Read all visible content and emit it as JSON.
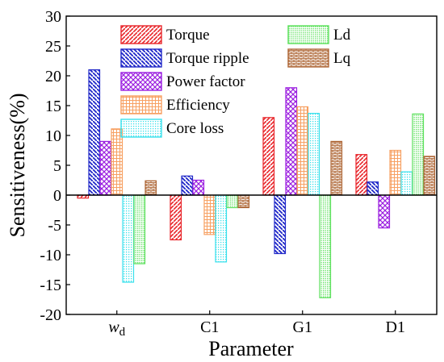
{
  "chart_data": {
    "type": "bar",
    "xlabel": "Parameter",
    "ylabel": "Sensitiveness(%)",
    "ylim": [
      -20,
      30
    ],
    "yticks": [
      -20,
      -15,
      -10,
      -5,
      0,
      5,
      10,
      15,
      20,
      25,
      30
    ],
    "grid": false,
    "legend_placement": "top (two columns inside plot)",
    "categories": [
      {
        "main": "w",
        "sub": "d"
      },
      {
        "main": "C1",
        "sub": ""
      },
      {
        "main": "G1",
        "sub": ""
      },
      {
        "main": "D1",
        "sub": ""
      }
    ],
    "series": [
      {
        "name": "Torque",
        "color": "#e8262b",
        "pattern": "diag-right",
        "values": [
          -0.5,
          -7.5,
          13.0,
          6.8
        ]
      },
      {
        "name": "Torque ripple",
        "color": "#1f27c8",
        "pattern": "diag-left",
        "values": [
          21.0,
          3.2,
          -9.8,
          2.2
        ]
      },
      {
        "name": "Power factor",
        "color": "#9b1fe0",
        "pattern": "cross",
        "values": [
          9.0,
          2.5,
          18.0,
          -5.5
        ]
      },
      {
        "name": "Efficiency",
        "color": "#f7a062",
        "pattern": "grid",
        "values": [
          11.1,
          -6.6,
          14.8,
          7.5
        ]
      },
      {
        "name": "Core loss",
        "color": "#38e0ec",
        "pattern": "dots",
        "values": [
          -14.6,
          -11.2,
          13.7,
          3.9
        ]
      },
      {
        "name": "Ld",
        "color": "#5ce05c",
        "pattern": "dense-dots",
        "values": [
          -11.5,
          -2.1,
          -17.2,
          13.6
        ]
      },
      {
        "name": "Lq",
        "color": "#b06a3b",
        "pattern": "brick",
        "values": [
          2.4,
          -2.1,
          9.0,
          6.5
        ]
      }
    ]
  }
}
